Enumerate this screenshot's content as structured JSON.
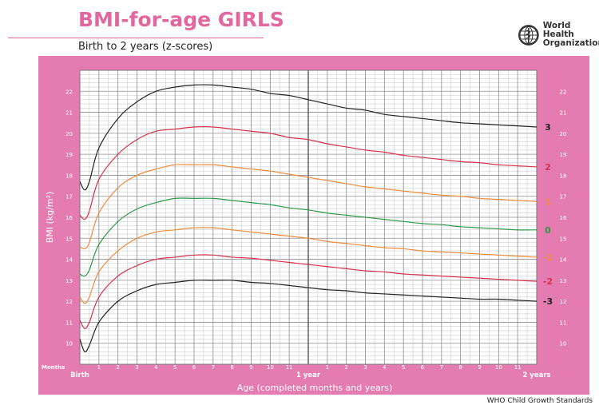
{
  "header": {
    "title": "BMI-for-age GIRLS",
    "subtitle": "Birth to 2 years (z-scores)",
    "org_line1": "World Health",
    "org_line2": "Organization"
  },
  "footer": "WHO Child Growth Standards",
  "colors": {
    "background_band": "#e57cb1",
    "plot_bg": "#ffffff",
    "grid": "#9a9a9a",
    "title": "#e2679e"
  },
  "chart_data": {
    "type": "line",
    "title": "BMI-for-age GIRLS",
    "subtitle": "Birth to 2 years (z-scores)",
    "xlabel": "Age (completed months and years)",
    "ylabel": "BMI (kg/m²)",
    "xlim": [
      0,
      24
    ],
    "ylim": [
      9,
      23
    ],
    "grid": true,
    "x_unit_label": "Months",
    "x_tick_labels": [
      {
        "x": 0,
        "label": "Birth",
        "bold": true
      },
      {
        "x": 1,
        "label": "1"
      },
      {
        "x": 2,
        "label": "2"
      },
      {
        "x": 3,
        "label": "3"
      },
      {
        "x": 4,
        "label": "4"
      },
      {
        "x": 5,
        "label": "5"
      },
      {
        "x": 6,
        "label": "6"
      },
      {
        "x": 7,
        "label": "7"
      },
      {
        "x": 8,
        "label": "8"
      },
      {
        "x": 9,
        "label": "9"
      },
      {
        "x": 10,
        "label": "10"
      },
      {
        "x": 11,
        "label": "11"
      },
      {
        "x": 12,
        "label": "1 year",
        "bold": true
      },
      {
        "x": 13,
        "label": "1"
      },
      {
        "x": 14,
        "label": "2"
      },
      {
        "x": 15,
        "label": "3"
      },
      {
        "x": 16,
        "label": "4"
      },
      {
        "x": 17,
        "label": "5"
      },
      {
        "x": 18,
        "label": "6"
      },
      {
        "x": 19,
        "label": "7"
      },
      {
        "x": 20,
        "label": "8"
      },
      {
        "x": 21,
        "label": "9"
      },
      {
        "x": 22,
        "label": "10"
      },
      {
        "x": 23,
        "label": "11"
      },
      {
        "x": 24,
        "label": "2 years",
        "bold": true
      }
    ],
    "y_ticks": [
      10,
      11,
      12,
      13,
      14,
      15,
      16,
      17,
      18,
      19,
      20,
      21,
      22
    ],
    "x": [
      0,
      0.25,
      0.5,
      1,
      2,
      3,
      4,
      5,
      6,
      7,
      8,
      9,
      10,
      11,
      12,
      13,
      14,
      15,
      16,
      17,
      18,
      19,
      20,
      21,
      22,
      23,
      24
    ],
    "series": [
      {
        "name": "3",
        "color": "#222222",
        "values": [
          17.7,
          17.3,
          17.7,
          19.3,
          20.7,
          21.5,
          22.0,
          22.2,
          22.3,
          22.3,
          22.2,
          22.1,
          21.9,
          21.8,
          21.6,
          21.4,
          21.2,
          21.1,
          20.9,
          20.8,
          20.7,
          20.6,
          20.5,
          20.45,
          20.4,
          20.35,
          20.3
        ]
      },
      {
        "name": "2",
        "color": "#d8324a",
        "values": [
          16.1,
          15.9,
          16.3,
          17.8,
          19.0,
          19.7,
          20.1,
          20.2,
          20.3,
          20.3,
          20.2,
          20.1,
          20.0,
          19.8,
          19.7,
          19.5,
          19.35,
          19.2,
          19.1,
          18.95,
          18.85,
          18.75,
          18.65,
          18.6,
          18.5,
          18.45,
          18.4
        ]
      },
      {
        "name": "1",
        "color": "#f08c3c",
        "values": [
          14.6,
          14.5,
          14.8,
          16.2,
          17.4,
          18.0,
          18.3,
          18.5,
          18.5,
          18.5,
          18.4,
          18.3,
          18.2,
          18.05,
          17.9,
          17.75,
          17.6,
          17.45,
          17.35,
          17.25,
          17.15,
          17.05,
          17.0,
          16.9,
          16.85,
          16.8,
          16.75
        ]
      },
      {
        "name": "0",
        "color": "#2e9a4a",
        "values": [
          13.3,
          13.2,
          13.5,
          14.7,
          15.8,
          16.4,
          16.7,
          16.9,
          16.9,
          16.9,
          16.8,
          16.7,
          16.6,
          16.45,
          16.35,
          16.2,
          16.1,
          16.0,
          15.9,
          15.8,
          15.7,
          15.65,
          15.55,
          15.5,
          15.45,
          15.4,
          15.4
        ]
      },
      {
        "name": "-1",
        "color": "#f08c3c",
        "values": [
          12.2,
          11.9,
          12.2,
          13.4,
          14.4,
          15.0,
          15.3,
          15.4,
          15.5,
          15.5,
          15.4,
          15.3,
          15.2,
          15.1,
          15.0,
          14.85,
          14.75,
          14.65,
          14.55,
          14.5,
          14.4,
          14.35,
          14.3,
          14.25,
          14.2,
          14.15,
          14.1
        ]
      },
      {
        "name": "-2",
        "color": "#d8324a",
        "values": [
          11.1,
          10.7,
          11.0,
          12.2,
          13.2,
          13.7,
          14.0,
          14.1,
          14.2,
          14.2,
          14.1,
          14.05,
          13.95,
          13.85,
          13.75,
          13.65,
          13.55,
          13.45,
          13.4,
          13.3,
          13.25,
          13.2,
          13.15,
          13.1,
          13.05,
          13.0,
          12.95
        ]
      },
      {
        "name": "-3",
        "color": "#222222",
        "values": [
          10.2,
          9.6,
          9.9,
          11.0,
          12.0,
          12.5,
          12.8,
          12.9,
          13.0,
          13.0,
          13.0,
          12.9,
          12.85,
          12.75,
          12.65,
          12.55,
          12.5,
          12.4,
          12.35,
          12.3,
          12.25,
          12.2,
          12.15,
          12.1,
          12.1,
          12.05,
          12.0
        ]
      }
    ]
  }
}
